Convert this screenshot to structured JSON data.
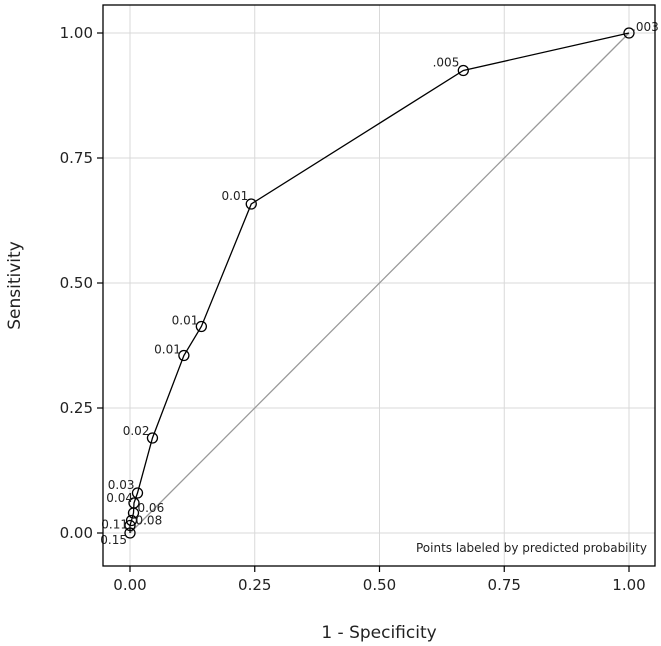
{
  "chart_data": {
    "type": "line",
    "title": "",
    "xlabel": "1 - Specificity",
    "ylabel": "Sensitivity",
    "xlim": [
      0,
      1
    ],
    "ylim": [
      0,
      1
    ],
    "x_ticks": [
      "0.00",
      "0.25",
      "0.50",
      "0.75",
      "1.00"
    ],
    "y_ticks": [
      "0.00",
      "0.25",
      "0.50",
      "0.75",
      "1.00"
    ],
    "grid": true,
    "note": "Points labeled by predicted probability",
    "reference_line": {
      "from": [
        0,
        0
      ],
      "to": [
        1,
        1
      ],
      "color": "#999999"
    },
    "series": [
      {
        "color": "#000000",
        "points": [
          {
            "x": 0.0,
            "y": 0.0,
            "label": "0.15"
          },
          {
            "x": 0.0,
            "y": 0.015,
            "label": "0.11"
          },
          {
            "x": 0.003,
            "y": 0.025,
            "label": "0.08"
          },
          {
            "x": 0.007,
            "y": 0.04,
            "label": "0.06"
          },
          {
            "x": 0.008,
            "y": 0.06,
            "label": "0.04"
          },
          {
            "x": 0.015,
            "y": 0.08,
            "label": "0.03"
          },
          {
            "x": 0.045,
            "y": 0.19,
            "label": "0.02"
          },
          {
            "x": 0.108,
            "y": 0.355,
            "label": "0.01"
          },
          {
            "x": 0.143,
            "y": 0.413,
            "label": "0.01"
          },
          {
            "x": 0.243,
            "y": 0.658,
            "label": "0.01"
          },
          {
            "x": 0.668,
            "y": 0.925,
            "label": ".005"
          },
          {
            "x": 1.0,
            "y": 1.0,
            "label": ".003"
          }
        ]
      }
    ]
  }
}
